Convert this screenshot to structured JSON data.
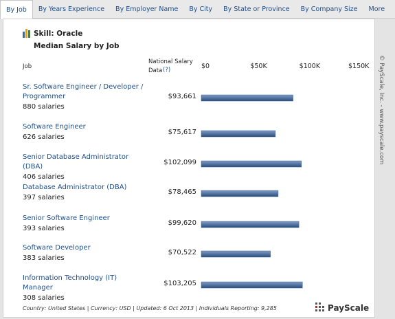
{
  "tabs": [
    "By Job",
    "By Years Experience",
    "By Employer Name",
    "By City",
    "By State or Province",
    "By Company Size",
    "More"
  ],
  "active_tab": 0,
  "chart_data": {
    "type": "hbar",
    "title": "Skill: Oracle",
    "subtitle": "Median Salary by Job",
    "category_header": "Job",
    "value_header": "National Salary Data",
    "help_link": "(?)",
    "categories": [
      "Sr. Software Engineer / Developer / Programmer",
      "Software Engineer",
      "Senior Database Administrator (DBA)",
      "Database Administrator (DBA)",
      "Senior Software Engineer",
      "Software Developer",
      "Information Technology (IT) Manager"
    ],
    "category_notes": [
      "880 salaries",
      "626 salaries",
      "406 salaries",
      "397 salaries",
      "393 salaries",
      "383 salaries",
      "308 salaries"
    ],
    "values": [
      93661,
      75617,
      102099,
      78465,
      99620,
      70522,
      103205
    ],
    "value_labels": [
      "$93,661",
      "$75,617",
      "$102,099",
      "$78,465",
      "$99,620",
      "$70,522",
      "$103,205"
    ],
    "color": "#3d6496",
    "xlim": [
      0,
      150000
    ],
    "xticks": [
      {
        "value": 0,
        "label": "$0"
      },
      {
        "value": 50000,
        "label": "$50K"
      },
      {
        "value": 100000,
        "label": "$100K"
      },
      {
        "value": 150000,
        "label": "$150K"
      }
    ]
  },
  "footer": "Country: United States | Currency: USD | Updated: 6 Oct 2013 | Individuals Reporting: 9,285",
  "logo": "PayScale",
  "side_note": "© PayScale, Inc. - www.payscale.com"
}
